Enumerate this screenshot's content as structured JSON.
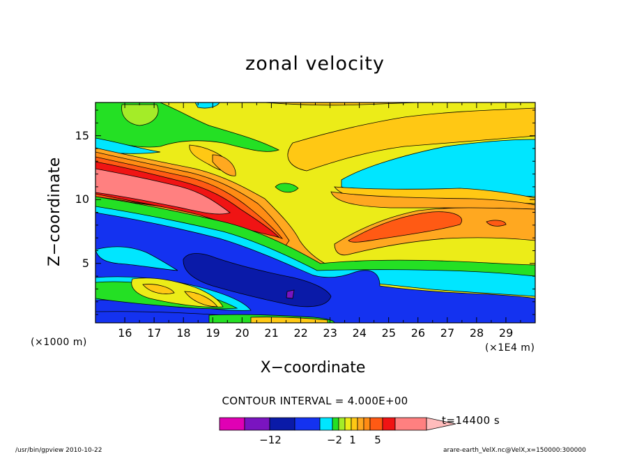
{
  "chart_data": {
    "type": "heatmap",
    "title": "zonal velocity",
    "xlabel": "X−coordinate",
    "ylabel": "Z−coordinate",
    "x_unit": "(×1E4 m)",
    "y_unit": "(×1000 m)",
    "xlim": [
      15.0,
      30.0
    ],
    "ylim": [
      0.35,
      17.6
    ],
    "x_ticks": [
      "16",
      "17",
      "18",
      "19",
      "20",
      "21",
      "22",
      "23",
      "24",
      "25",
      "26",
      "27",
      "28",
      "29"
    ],
    "y_ticks": [
      "5",
      "10",
      "15"
    ],
    "contour_interval": "CONTOUR INTERVAL = 4.000E+00",
    "time_label": "t=14400 s",
    "colorbar": {
      "colors": [
        "#e000b4",
        "#7a14c0",
        "#0a1aa8",
        "#1432f0",
        "#00e6ff",
        "#24e024",
        "#a4ec28",
        "#ecec18",
        "#ffc814",
        "#ffa820",
        "#ff8c14",
        "#ff5a14",
        "#f01414",
        "#ff8080",
        "#ffbcbc"
      ],
      "tick_labels": [
        "−12",
        "−2",
        "1",
        "5"
      ]
    },
    "footer_left": "/usr/bin/gpview   2010-10-22",
    "footer_right": "arare-earth_VelX.nc@VelX,x=150000:300000"
  }
}
